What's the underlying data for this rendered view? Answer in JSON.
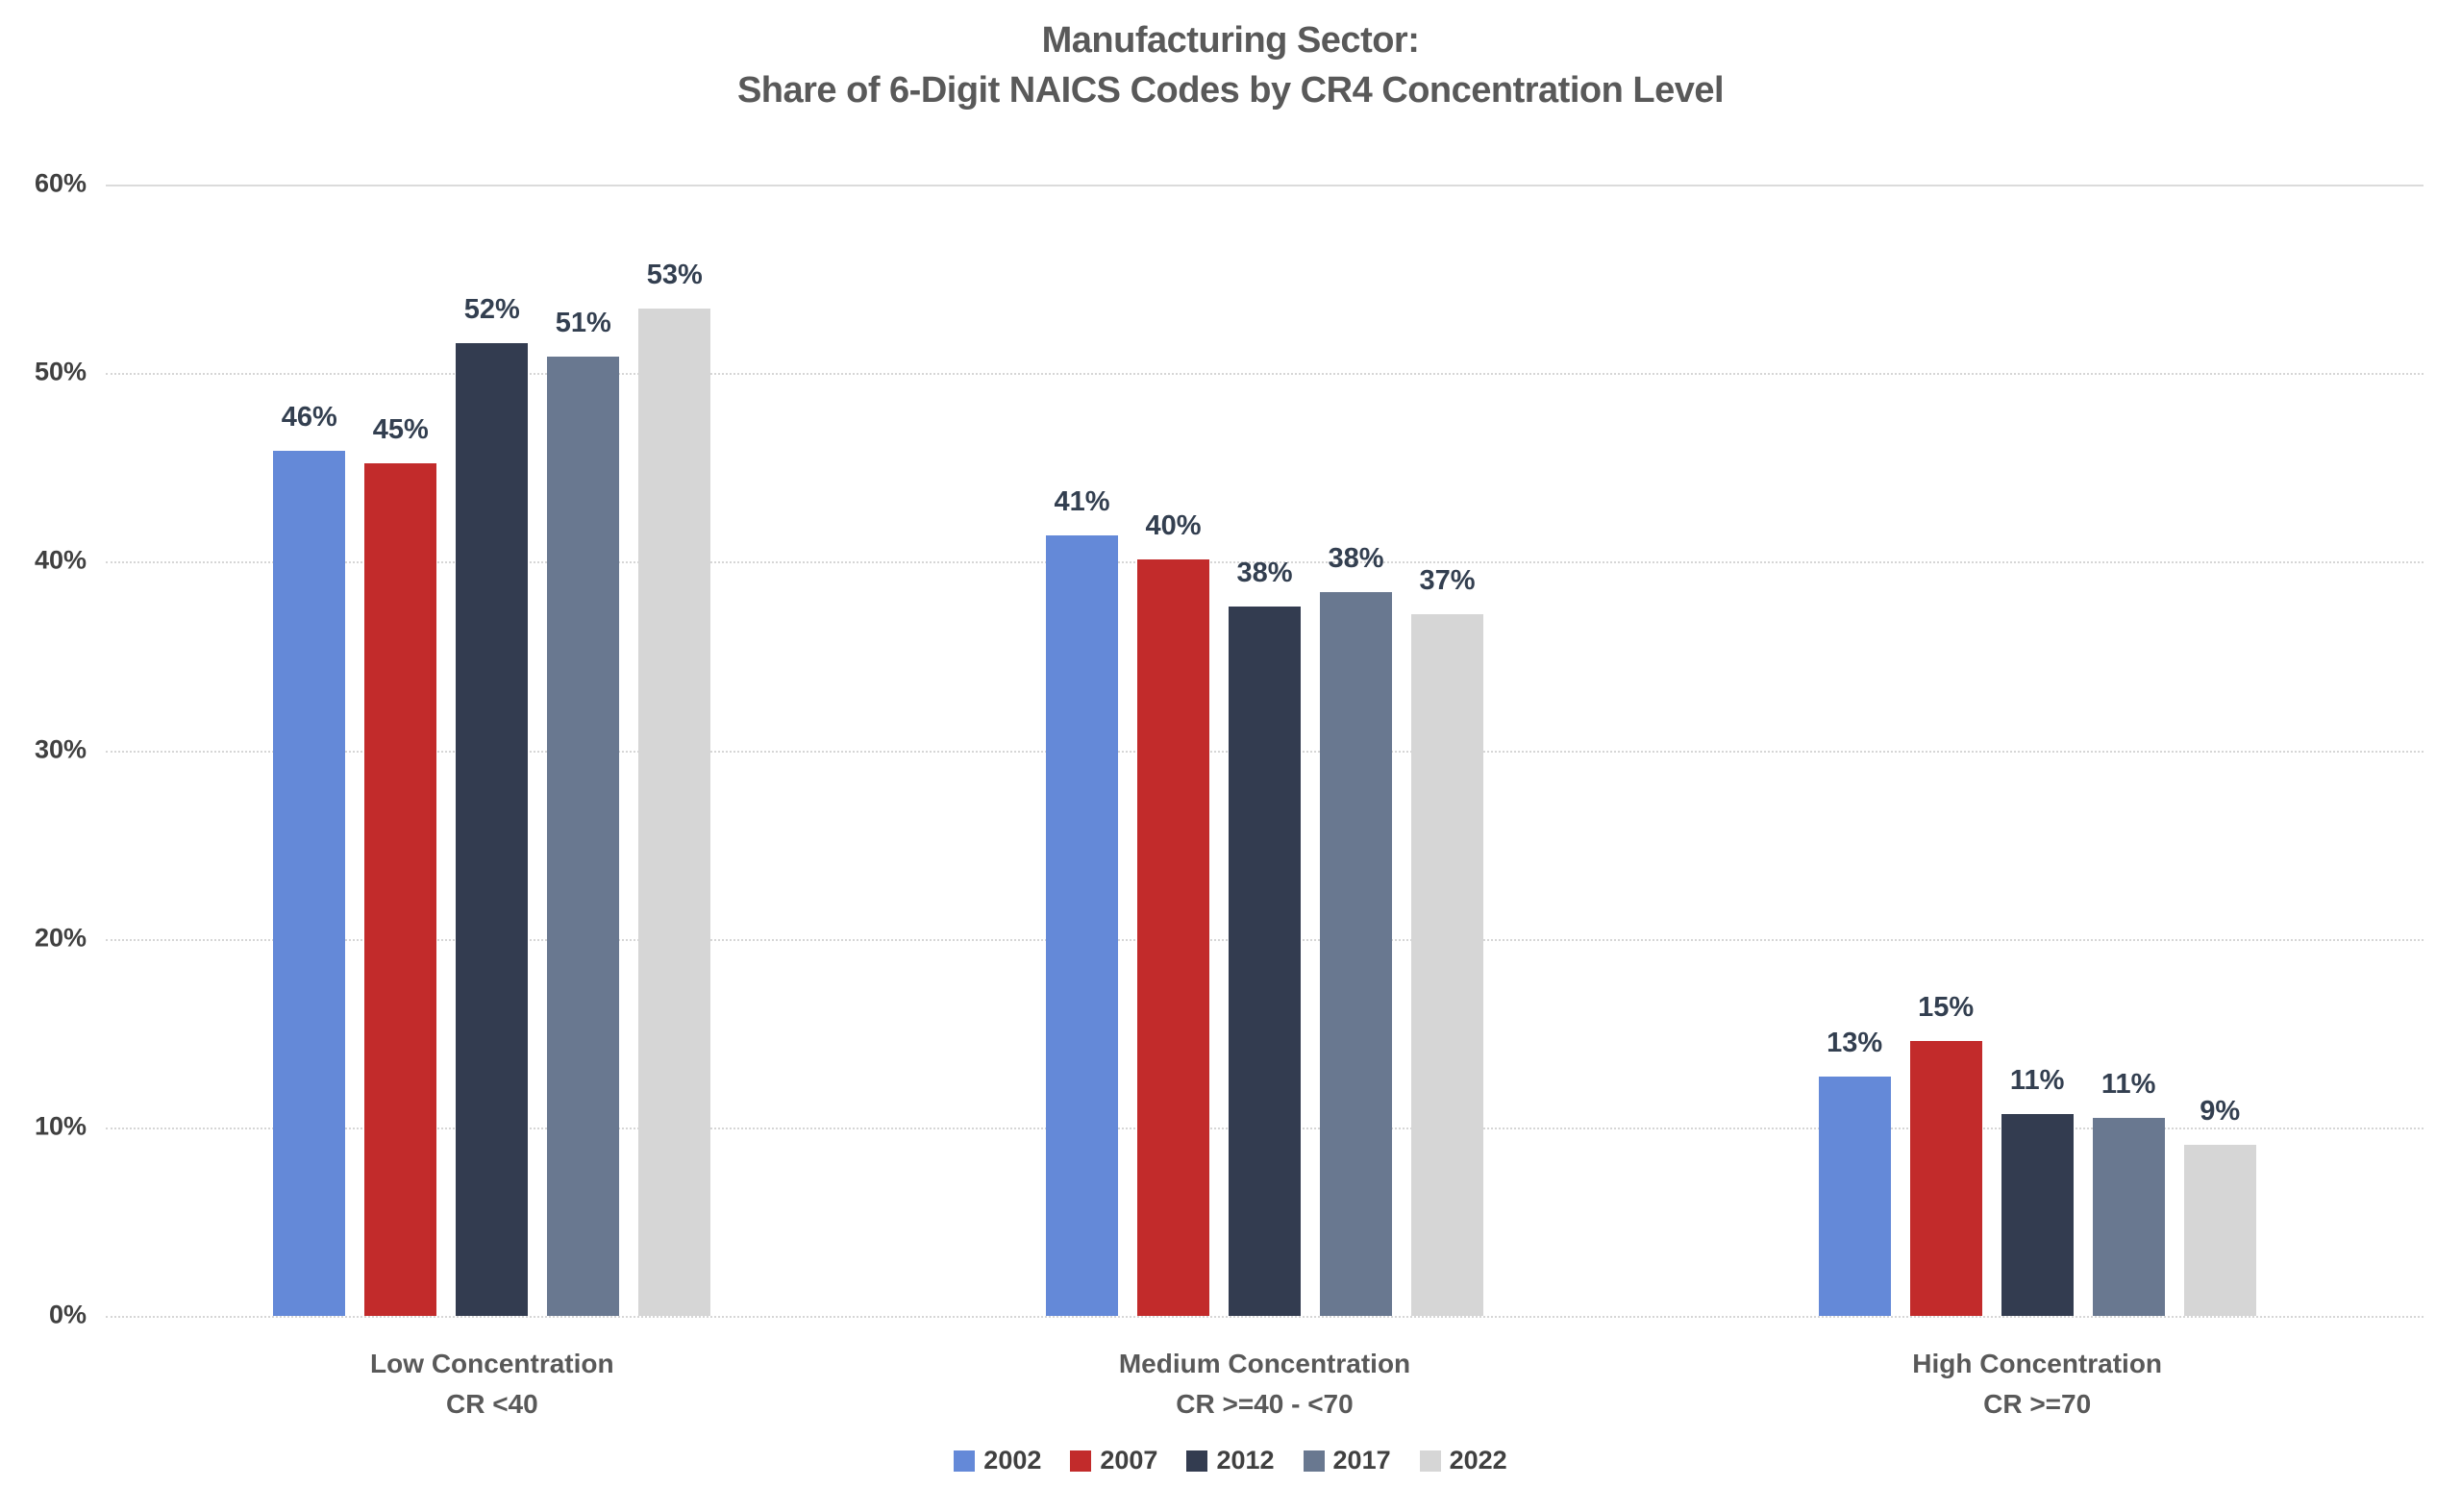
{
  "chart_data": {
    "type": "bar",
    "title_line1": "Manufacturing Sector:",
    "title_line2": "Share of 6-Digit NAICS Codes by CR4 Concentration Level",
    "categories": [
      {
        "label": "Low Concentration",
        "sublabel": "CR <40"
      },
      {
        "label": "Medium Concentration",
        "sublabel": "CR >=40 - <70"
      },
      {
        "label": "High Concentration",
        "sublabel": "CR >=70"
      }
    ],
    "series": [
      {
        "name": "2002",
        "color": "#6489D8",
        "values": [
          45.9,
          41.4,
          12.7
        ],
        "labels": [
          "46%",
          "41%",
          "13%"
        ]
      },
      {
        "name": "2007",
        "color": "#C22B2B",
        "values": [
          45.2,
          40.1,
          14.6
        ],
        "labels": [
          "45%",
          "40%",
          "15%"
        ]
      },
      {
        "name": "2012",
        "color": "#333C50",
        "values": [
          51.6,
          37.6,
          10.7
        ],
        "labels": [
          "52%",
          "38%",
          "11%"
        ]
      },
      {
        "name": "2017",
        "color": "#697890",
        "values": [
          50.9,
          38.4,
          10.5
        ],
        "labels": [
          "51%",
          "38%",
          "11%"
        ]
      },
      {
        "name": "2022",
        "color": "#D6D6D6",
        "values": [
          53.4,
          37.2,
          9.1
        ],
        "labels": [
          "53%",
          "37%",
          "9%"
        ]
      }
    ],
    "y_axis": {
      "min": 0,
      "max": 60,
      "ticks": [
        "60%",
        "50%",
        "40%",
        "30%",
        "20%",
        "10%",
        "0%"
      ],
      "grid": true
    },
    "legend_position": "bottom",
    "text_colors": {
      "title": "#595959",
      "axis_ticks": "#404040",
      "value_labels": "#333F50",
      "category_labels": "#595959"
    },
    "gridline_color": "#DBDBDB",
    "background": "#FFFFFF"
  }
}
